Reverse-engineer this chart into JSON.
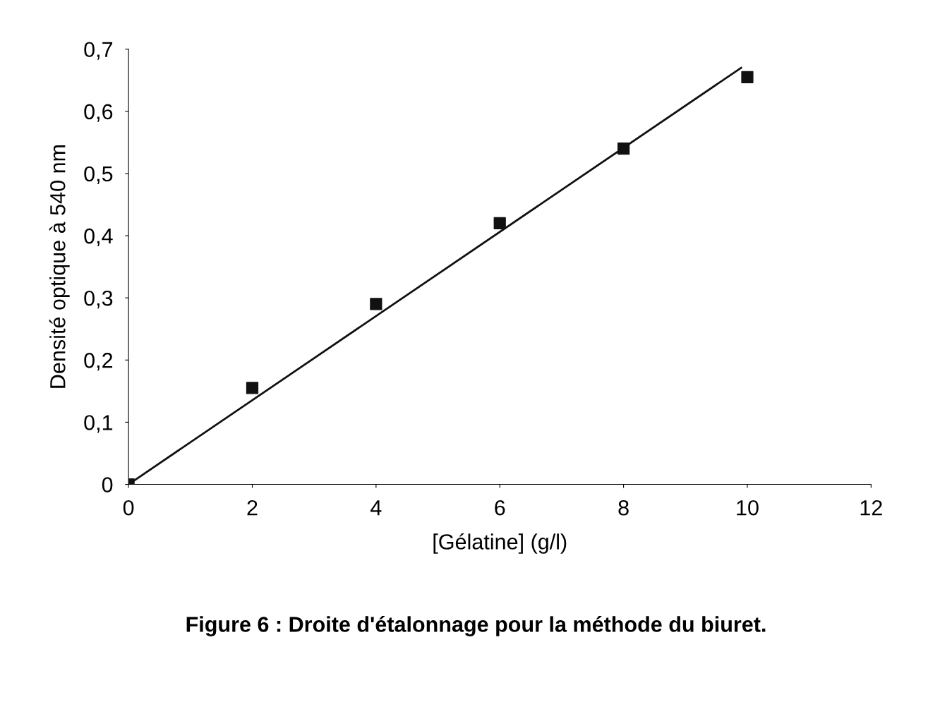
{
  "chart_data": {
    "type": "scatter",
    "xlabel": "[Gélatine] (g/l)",
    "ylabel": "Densité optique à 540 nm",
    "annotations": [
      "Figure 6 : Droite d'étalonnage pour la méthode du biuret."
    ],
    "x": [
      0,
      2,
      4,
      6,
      8,
      10
    ],
    "series": [
      {
        "color": "#111111",
        "marker": "square",
        "values": [
          0,
          0.155,
          0.29,
          0.42,
          0.54,
          0.655
        ]
      },
      {
        "type": "line",
        "color": "#111111",
        "marker": "none",
        "x": [
          0,
          9.9
        ],
        "values": [
          0,
          0.67
        ]
      }
    ],
    "xlim": [
      0,
      12
    ],
    "ylim": [
      0,
      0.7
    ],
    "xticks": [
      0,
      2,
      4,
      6,
      8,
      10,
      12
    ],
    "yticks": [
      0,
      {
        "value": 0.1,
        "label": "0,1"
      },
      {
        "value": 0.2,
        "label": "0,2"
      },
      {
        "value": 0.3,
        "label": "0,3"
      },
      {
        "value": 0.4,
        "label": "0,4"
      },
      {
        "value": 0.5,
        "label": "0,5"
      },
      {
        "value": 0.6,
        "label": "0,6"
      },
      {
        "value": 0.7,
        "label": "0,7"
      }
    ],
    "grid": false,
    "legend": false
  }
}
